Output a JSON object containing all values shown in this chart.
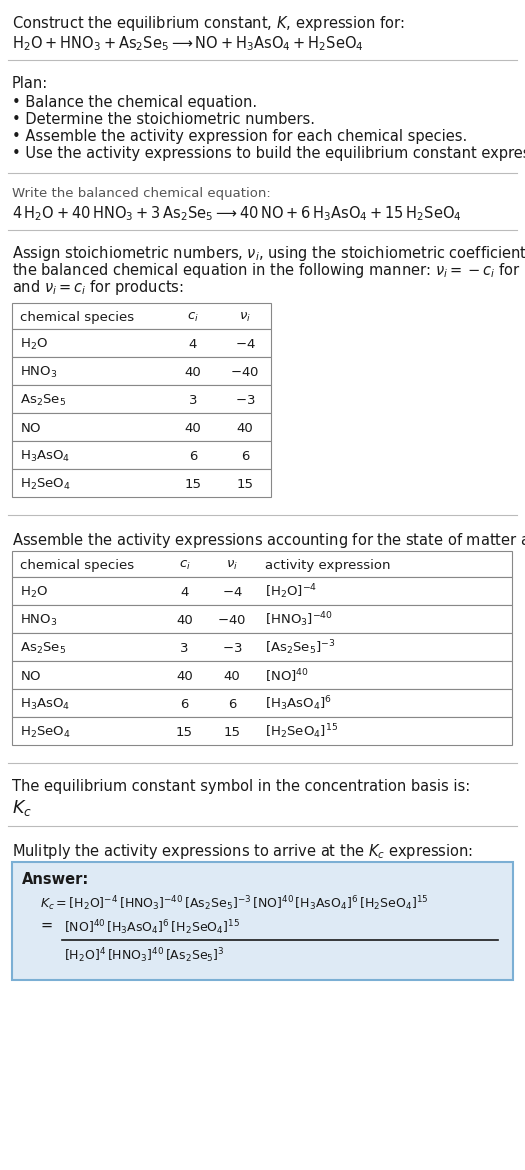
{
  "bg_color": "#ffffff",
  "text_color": "#1a1a1a",
  "title_line1": "Construct the equilibrium constant, $K$, expression for:",
  "reaction_unbalanced": "$\\mathrm{H_2O + HNO_3 + As_2Se_5 \\longrightarrow NO + H_3AsO_4 + H_2SeO_4}$",
  "plan_header": "Plan:",
  "plan_bullets": [
    "Balance the chemical equation.",
    "Determine the stoichiometric numbers.",
    "Assemble the activity expression for each chemical species.",
    "Use the activity expressions to build the equilibrium constant expression."
  ],
  "balanced_header": "Write the balanced chemical equation:",
  "balanced_eq": "$4\\,\\mathrm{H_2O} + 40\\,\\mathrm{HNO_3} + 3\\,\\mathrm{As_2Se_5} \\longrightarrow 40\\,\\mathrm{NO} + 6\\,\\mathrm{H_3AsO_4} + 15\\,\\mathrm{H_2SeO_4}$",
  "stoich_header_lines": [
    "Assign stoichiometric numbers, $\\nu_i$, using the stoichiometric coefficients, $c_i$, from",
    "the balanced chemical equation in the following manner: $\\nu_i = -c_i$ for reactants",
    "and $\\nu_i = c_i$ for products:"
  ],
  "table1_headers": [
    "chemical species",
    "$c_i$",
    "$\\nu_i$"
  ],
  "table1_rows": [
    [
      "$\\mathrm{H_2O}$",
      "4",
      "$-4$"
    ],
    [
      "$\\mathrm{HNO_3}$",
      "40",
      "$-40$"
    ],
    [
      "$\\mathrm{As_2Se_5}$",
      "3",
      "$-3$"
    ],
    [
      "$\\mathrm{NO}$",
      "40",
      "40"
    ],
    [
      "$\\mathrm{H_3AsO_4}$",
      "6",
      "6"
    ],
    [
      "$\\mathrm{H_2SeO_4}$",
      "15",
      "15"
    ]
  ],
  "activity_header": "Assemble the activity expressions accounting for the state of matter and $\\nu_i$:",
  "table2_headers": [
    "chemical species",
    "$c_i$",
    "$\\nu_i$",
    "activity expression"
  ],
  "table2_rows": [
    [
      "$\\mathrm{H_2O}$",
      "4",
      "$-4$",
      "$[\\mathrm{H_2O}]^{-4}$"
    ],
    [
      "$\\mathrm{HNO_3}$",
      "40",
      "$-40$",
      "$[\\mathrm{HNO_3}]^{-40}$"
    ],
    [
      "$\\mathrm{As_2Se_5}$",
      "3",
      "$-3$",
      "$[\\mathrm{As_2Se_5}]^{-3}$"
    ],
    [
      "$\\mathrm{NO}$",
      "40",
      "40",
      "$[\\mathrm{NO}]^{40}$"
    ],
    [
      "$\\mathrm{H_3AsO_4}$",
      "6",
      "6",
      "$[\\mathrm{H_3AsO_4}]^{6}$"
    ],
    [
      "$\\mathrm{H_2SeO_4}$",
      "15",
      "15",
      "$[\\mathrm{H_2SeO_4}]^{15}$"
    ]
  ],
  "Kc_header": "The equilibrium constant symbol in the concentration basis is:",
  "Kc_symbol": "$K_c$",
  "multiply_header": "Mulitply the activity expressions to arrive at the $K_c$ expression:",
  "answer_label": "Answer:",
  "answer_line1": "$K_c = [\\mathrm{H_2O}]^{-4}\\,[\\mathrm{HNO_3}]^{-40}\\,[\\mathrm{As_2Se_5}]^{-3}\\,[\\mathrm{NO}]^{40}\\,[\\mathrm{H_3AsO_4}]^{6}\\,[\\mathrm{H_2SeO_4}]^{15}$",
  "answer_eq_sign": "=",
  "answer_line2_num": "$[\\mathrm{NO}]^{40}\\,[\\mathrm{H_3AsO_4}]^{6}\\,[\\mathrm{H_2SeO_4}]^{15}$",
  "answer_line2_den": "$[\\mathrm{H_2O}]^{4}\\,[\\mathrm{HNO_3}]^{40}\\,[\\mathrm{As_2Se_5}]^{3}$",
  "answer_box_color": "#deeaf5",
  "answer_box_edge": "#7bafd4",
  "table_border_color": "#888888",
  "table_header_bg": "#ffffff",
  "hline_color": "#bbbbbb",
  "gray_text": "#555555"
}
